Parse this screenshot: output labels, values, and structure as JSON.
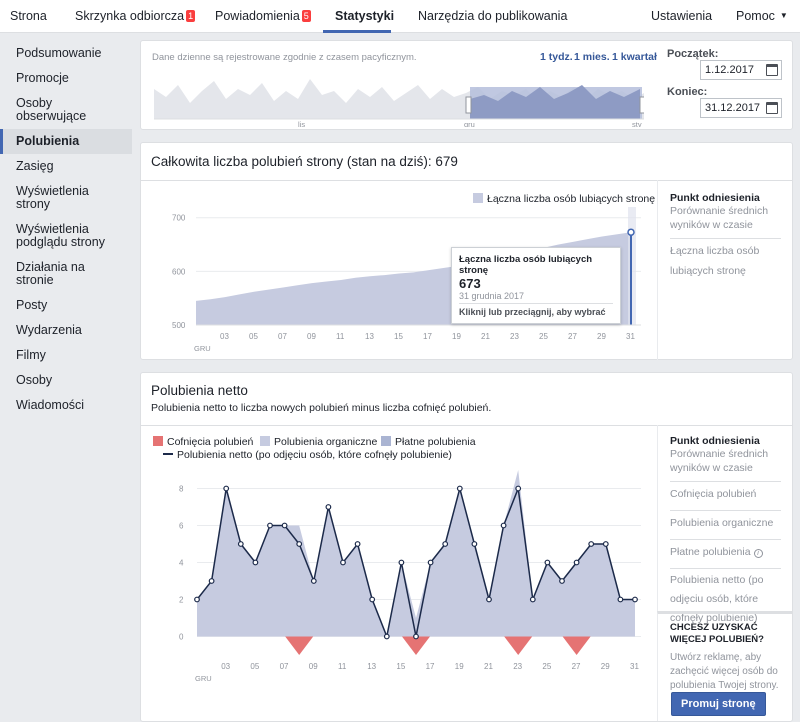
{
  "topnav": {
    "tabs": [
      "Strona",
      "Skrzynka odbiorcza",
      "Powiadomienia",
      "Statystyki",
      "Narzędzia do publikowania"
    ],
    "inbox_badge": "1",
    "notif_badge": "5",
    "settings": "Ustawienia",
    "help": "Pomoc"
  },
  "sidebar": {
    "items": [
      "Podsumowanie",
      "Promocje",
      "Osoby obserwujące",
      "Polubienia",
      "Zasięg",
      "Wyświetlenia strony",
      "Wyświetlenia podglądu strony",
      "Działania na stronie",
      "Posty",
      "Wydarzenia",
      "Filmy",
      "Osoby",
      "Wiadomości"
    ],
    "active": "Polubienia"
  },
  "range": {
    "note": "Dane dzienne są rejestrowane zgodnie z czasem pacyficznym.",
    "presets": [
      "1 tydz.",
      "1 mies.",
      "1 kwartał"
    ],
    "start_label": "Początek:",
    "start_value": "1.12.2017",
    "end_label": "Koniec:",
    "end_value": "31.12.2017",
    "timeline_labels": [
      "lis",
      "gru",
      "sty"
    ]
  },
  "total": {
    "title": "Całkowita liczba polubień strony (stan na dziś): 679",
    "legend": "Łączna liczba osób lubiących stronę",
    "tooltip_title": "Łączna liczba osób lubiących stronę",
    "tooltip_value": "673",
    "tooltip_date": "31 grudnia 2017",
    "tooltip_hint": "Kliknij lub przeciągnij, aby wybrać",
    "ref_head": "Punkt odniesienia",
    "ref_sub": "Porównanie średnich wyników w czasie",
    "ref_item": "Łączna liczba osób lubiących stronę"
  },
  "net": {
    "title": "Polubienia netto",
    "subtitle": "Polubienia netto to liczba nowych polubień minus liczba cofnięć polubień.",
    "legend": [
      "Cofnięcia polubień",
      "Polubienia organiczne",
      "Płatne polubienia",
      "Polubienia netto (po odjęciu osób, które cofnęły polubienie)"
    ],
    "ref_head": "Punkt odniesienia",
    "ref_sub": "Porównanie średnich wyników w czasie",
    "ref_items": [
      "Cofnięcia polubień",
      "Polubienia organiczne",
      "Płatne polubienia",
      "Polubienia netto (po odjęciu osób, które cofnęły polubienie)"
    ],
    "promo_head": "CHCESZ UZYSKAĆ WIĘCEJ POLUBIEŃ?",
    "promo_text": "Utwórz reklamę, aby zachęcić więcej osób do polubienia Twojej strony.",
    "promo_button": "Promuj stronę"
  },
  "colors": {
    "accent": "#4267b2",
    "area": "#c6cbe0",
    "paid": "#aab4d2",
    "unlikes": "#e57373",
    "line": "#1c2a4a"
  },
  "chart_data": [
    {
      "type": "area",
      "title": "Całkowita liczba polubień strony (stan na dziś): 679",
      "x": [
        1,
        2,
        3,
        4,
        5,
        6,
        7,
        8,
        9,
        10,
        11,
        12,
        13,
        14,
        15,
        16,
        17,
        18,
        19,
        20,
        21,
        22,
        23,
        24,
        25,
        26,
        27,
        28,
        29,
        30,
        31
      ],
      "x_ticks": [
        "03",
        "05",
        "07",
        "09",
        "11",
        "13",
        "15",
        "17",
        "19",
        "21",
        "23",
        "25",
        "27",
        "29",
        "31"
      ],
      "x_tick_values": [
        3,
        5,
        7,
        9,
        11,
        13,
        15,
        17,
        19,
        21,
        23,
        25,
        27,
        29,
        31
      ],
      "x_unit_label": "GRU",
      "series": [
        {
          "name": "Łączna liczba osób lubiących stronę",
          "values": [
            545,
            548,
            552,
            557,
            562,
            566,
            570,
            574,
            578,
            581,
            584,
            588,
            591,
            593,
            596,
            598,
            602,
            606,
            610,
            614,
            620,
            626,
            632,
            638,
            644,
            650,
            655,
            660,
            665,
            669,
            673
          ]
        }
      ],
      "y_ticks": [
        500,
        600,
        700
      ],
      "ylim": [
        500,
        720
      ],
      "legend": "top-right"
    },
    {
      "type": "area",
      "title": "Polubienia netto",
      "x": [
        1,
        2,
        3,
        4,
        5,
        6,
        7,
        8,
        9,
        10,
        11,
        12,
        13,
        14,
        15,
        16,
        17,
        18,
        19,
        20,
        21,
        22,
        23,
        24,
        25,
        26,
        27,
        28,
        29,
        30,
        31
      ],
      "x_ticks": [
        "03",
        "05",
        "07",
        "09",
        "11",
        "13",
        "15",
        "17",
        "19",
        "21",
        "23",
        "25",
        "27",
        "29",
        "31"
      ],
      "x_tick_values": [
        3,
        5,
        7,
        9,
        11,
        13,
        15,
        17,
        19,
        21,
        23,
        25,
        27,
        29,
        31
      ],
      "x_unit_label": "GRU",
      "series": [
        {
          "name": "Cofnięcia polubień",
          "values": [
            0,
            0,
            0,
            0,
            0,
            0,
            0,
            -1,
            0,
            0,
            0,
            0,
            0,
            0,
            0,
            -1,
            0,
            0,
            0,
            0,
            0,
            0,
            -1,
            0,
            0,
            0,
            -1,
            0,
            0,
            0,
            0
          ]
        },
        {
          "name": "Polubienia organiczne",
          "values": [
            2,
            3,
            8,
            5,
            4,
            6,
            6,
            6,
            3,
            7,
            4,
            5,
            2,
            0,
            4,
            1,
            4,
            5,
            8,
            5,
            2,
            6,
            9,
            2,
            4,
            3,
            4,
            5,
            5,
            2,
            2
          ]
        },
        {
          "name": "Polubienia netto (po odjęciu osób, które cofnęły polubienie)",
          "values": [
            2,
            3,
            8,
            5,
            4,
            6,
            6,
            5,
            3,
            7,
            4,
            5,
            2,
            0,
            4,
            0,
            4,
            5,
            8,
            5,
            2,
            6,
            8,
            2,
            4,
            3,
            4,
            5,
            5,
            2,
            2
          ]
        }
      ],
      "y_ticks": [
        0,
        2,
        4,
        6,
        8
      ],
      "ylim": [
        -1,
        9
      ],
      "legend": "top-left"
    }
  ]
}
